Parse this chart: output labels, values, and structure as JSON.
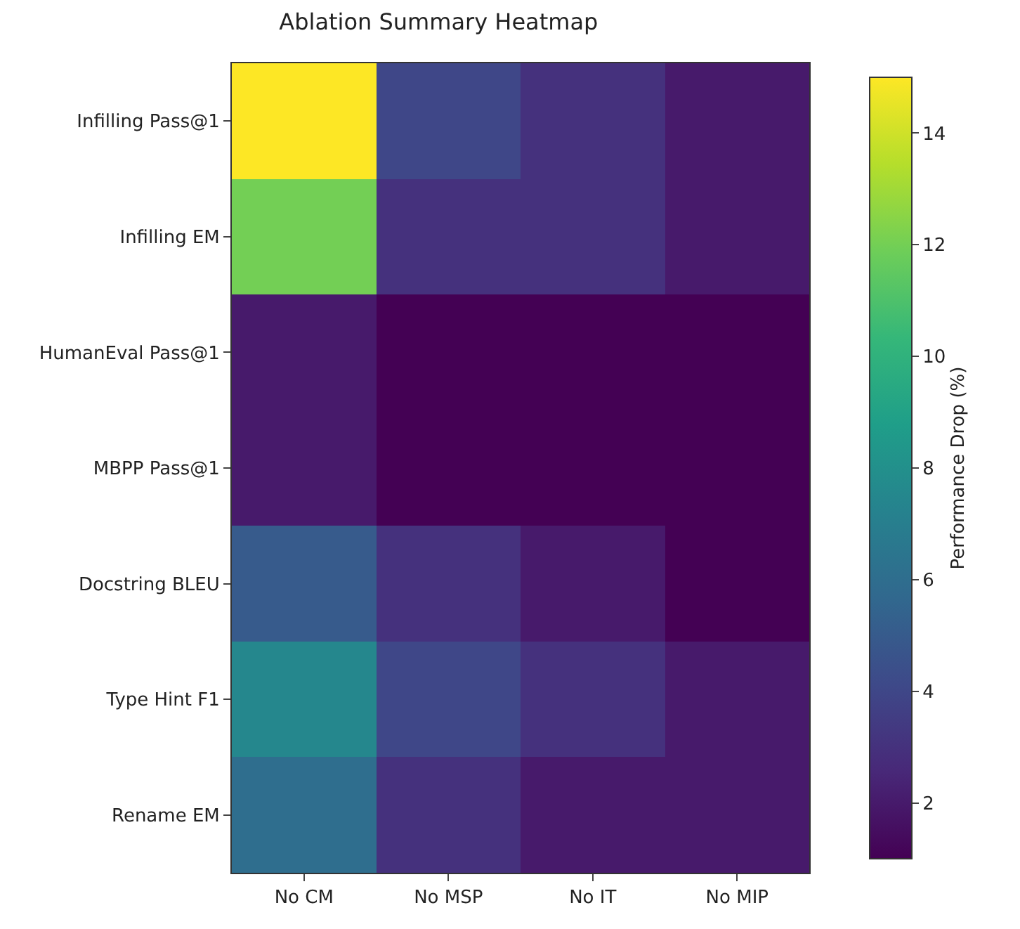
{
  "chart_data": {
    "type": "heatmap",
    "title": "Ablation Summary Heatmap",
    "categories": [
      "No CM",
      "No MSP",
      "No IT",
      "No MIP"
    ],
    "y_categories": [
      "Infilling Pass@1",
      "Infilling EM",
      "HumanEval Pass@1",
      "MBPP Pass@1",
      "Docstring BLEU",
      "Type Hint F1",
      "Rename EM"
    ],
    "cells": [
      [
        15,
        4,
        3,
        2
      ],
      [
        12,
        3,
        3,
        2
      ],
      [
        2,
        1,
        1,
        1
      ],
      [
        2,
        1,
        1,
        1
      ],
      [
        5,
        3,
        2,
        1
      ],
      [
        7.5,
        4,
        3,
        2
      ],
      [
        6,
        3,
        2,
        2
      ]
    ],
    "clabel": "Performance Drop (%)",
    "clim": [
      1,
      15
    ],
    "cticks": [
      2,
      4,
      6,
      8,
      10,
      12,
      14
    ]
  }
}
